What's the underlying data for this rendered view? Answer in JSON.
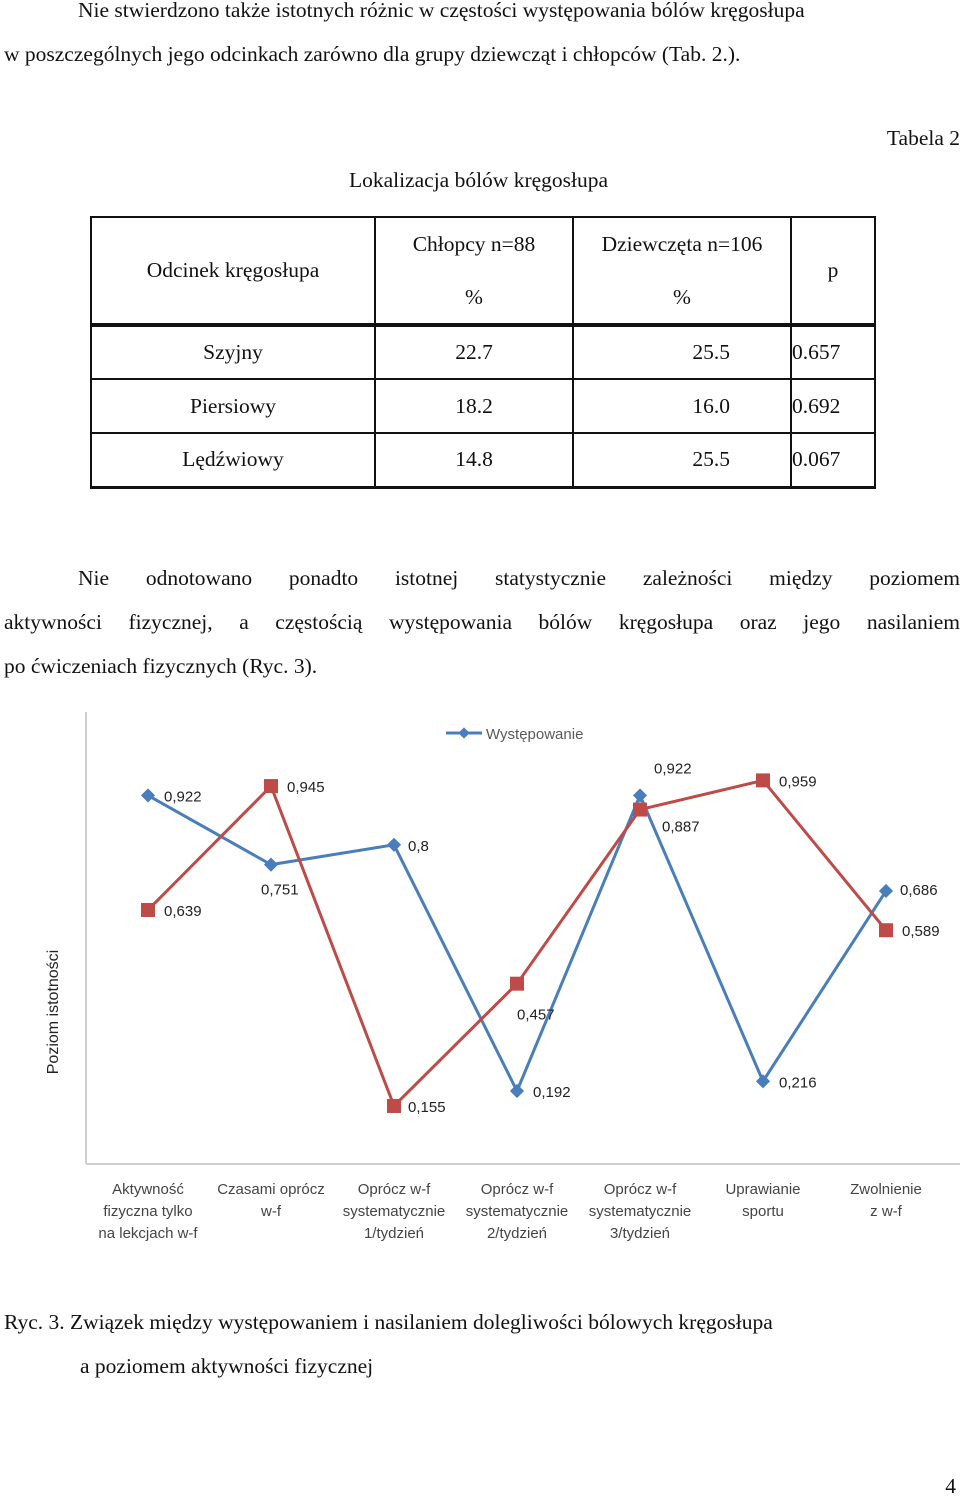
{
  "intro": {
    "line1": "Nie stwierdzono także istotnych różnic w częstości występowania bólów kręgosłupa",
    "line2": "w poszczególnych jego odcinkach zarówno dla grupy dziewcząt i chłopców (Tab. 2.)."
  },
  "table": {
    "label": "Tabela 2",
    "title": "Lokalizacja bólów kręgosłupa",
    "header": {
      "segment": "Odcinek kręgosłupa",
      "boys": "Chłopcy n=88",
      "girls": "Dziewczęta n=106",
      "boys_unit": "%",
      "girls_unit": "%",
      "p": "p"
    },
    "rows": [
      {
        "segment": "Szyjny",
        "boys": "22.7",
        "girls": "25.5",
        "p": "0.657"
      },
      {
        "segment": "Piersiowy",
        "boys": "18.2",
        "girls": "16.0",
        "p": "0.692"
      },
      {
        "segment": "Lędźwiowy",
        "boys": "14.8",
        "girls": "25.5",
        "p": "0.067"
      }
    ]
  },
  "para2": {
    "line1": "Nie odnotowano ponadto istotnej statystycznie zależności między poziomem",
    "line2": "aktywności fizycznej, a częstością występowania bólów kręgosłupa oraz jego nasilaniem",
    "line3": "po ćwiczeniach fizycznych (Ryc. 3)."
  },
  "chart_data": {
    "type": "line",
    "ylabel": "Poziom istotności",
    "categories": [
      [
        "Aktywność",
        "fizyczna tylko",
        "na lekcjach w-f"
      ],
      [
        "Czasami oprócz",
        "w-f"
      ],
      [
        "Oprócz w-f",
        "systematycznie",
        "1/tydzień"
      ],
      [
        "Oprócz w-f",
        "systematycznie",
        "2/tydzień"
      ],
      [
        "Oprócz w-f",
        "systematycznie",
        "3/tydzień"
      ],
      [
        "Uprawianie",
        "sportu"
      ],
      [
        "Zwolnienie",
        "z w-f"
      ]
    ],
    "series": [
      {
        "name": "Występowanie",
        "color": "#4a7ebb",
        "marker": "diamond",
        "values": [
          0.922,
          0.751,
          0.8,
          0.192,
          0.922,
          0.216,
          0.686
        ],
        "labels": [
          "0,922",
          "0,751",
          "0,8",
          "0,192",
          "0,922",
          "0,216",
          "0,686"
        ]
      },
      {
        "name": "",
        "color": "#be4b48",
        "marker": "square",
        "values": [
          0.639,
          0.945,
          0.155,
          0.457,
          0.887,
          0.959,
          0.589
        ],
        "labels": [
          "0,639",
          "0,945",
          "0,155",
          "0,457",
          "0,887",
          "0,959",
          "0,589"
        ]
      }
    ],
    "legend": "top-center",
    "grid": false
  },
  "caption": {
    "line1": "Ryc. 3. Związek między występowaniem i nasilaniem dolegliwości bólowych kręgosłupa",
    "line2": "a poziomem aktywności fizycznej"
  },
  "page_number": "4"
}
